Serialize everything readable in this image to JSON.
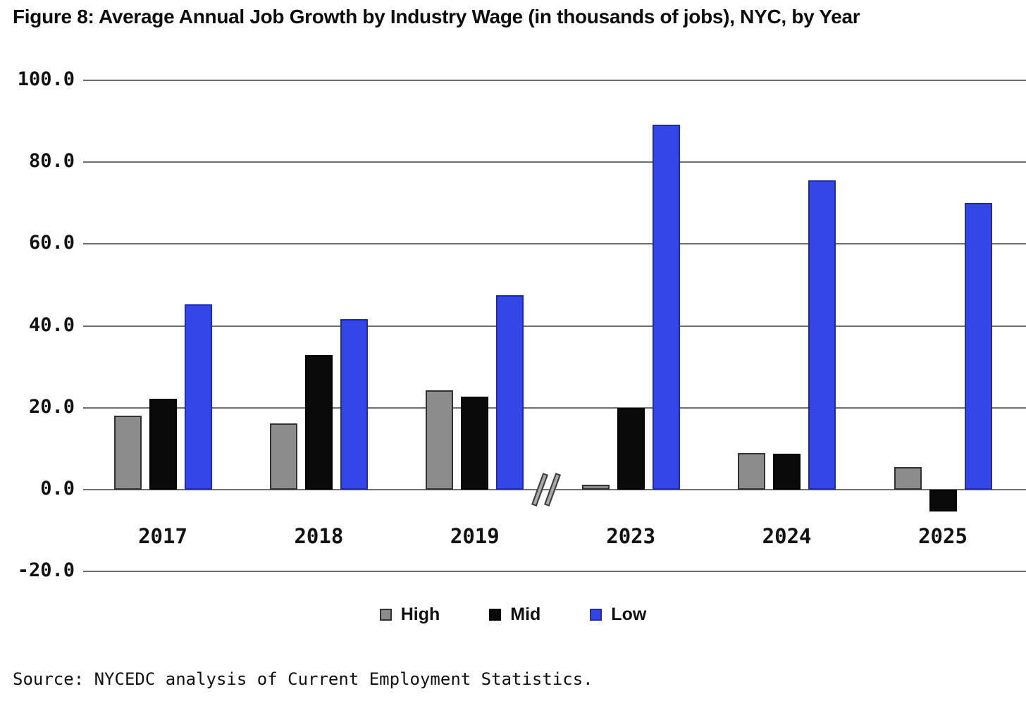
{
  "title": "Figure 8: Average Annual Job Growth by Industry Wage (in thousands of jobs), NYC, by Year",
  "source": "Source: NYCEDC analysis of Current Employment Statistics.",
  "colors": {
    "high_fill": "#8c8c8c",
    "high_border": "#323232",
    "mid_fill": "#0a0a0a",
    "mid_border": "#000000",
    "low_fill": "#3347e8",
    "low_border": "#1c2ab4",
    "gridline": "#6e6e6e",
    "text": "#121212"
  },
  "chart_data": {
    "type": "bar",
    "title": "Figure 8: Average Annual Job Growth by Industry Wage (in thousands of jobs), NYC, by Year",
    "categories": [
      "2017",
      "2018",
      "2019",
      "2023",
      "2024",
      "2025"
    ],
    "series": [
      {
        "name": "High",
        "color": "#8c8c8c",
        "border": "#323232",
        "values": [
          18.1,
          16.1,
          24.2,
          1.2,
          9.0,
          5.5
        ]
      },
      {
        "name": "Mid",
        "color": "#0a0a0a",
        "border": "#000000",
        "values": [
          22.1,
          32.8,
          22.7,
          20.0,
          8.8,
          -5.3
        ]
      },
      {
        "name": "Low",
        "color": "#3347e8",
        "border": "#1c2ab4",
        "values": [
          45.3,
          41.7,
          47.5,
          89.2,
          75.5,
          70.0
        ]
      }
    ],
    "xlabel": "",
    "ylabel": "",
    "yticks": [
      100.0,
      80.0,
      60.0,
      40.0,
      20.0,
      0.0,
      -20.0
    ],
    "ylim": [
      -20.0,
      100.0
    ],
    "grid": true,
    "legend_position": "bottom",
    "annotations": [
      "axis break between 2019 and 2023"
    ]
  }
}
